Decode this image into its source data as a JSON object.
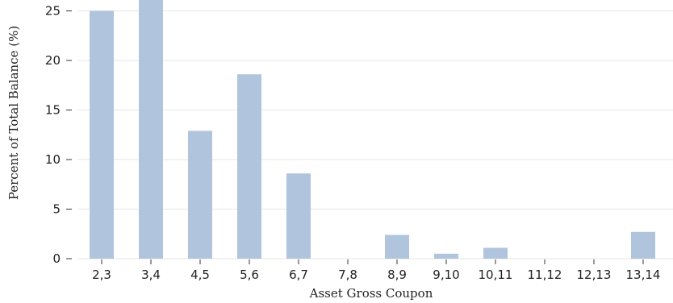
{
  "chart_data": {
    "type": "bar",
    "title": "",
    "xlabel": "Asset Gross Coupon",
    "ylabel": "Percent of Total Balance (%)",
    "categories": [
      "2,3",
      "3,4",
      "4,5",
      "5,6",
      "6,7",
      "7,8",
      "8,9",
      "9,10",
      "10,11",
      "11,12",
      "12,13",
      "13,14"
    ],
    "values": [
      25.0,
      26.5,
      12.9,
      18.6,
      8.6,
      0.0,
      2.4,
      0.5,
      1.1,
      0.0,
      0.0,
      2.7
    ],
    "ylim": [
      0,
      26.1
    ],
    "yticks": [
      0,
      5,
      10,
      15,
      20,
      25
    ],
    "grid": true,
    "legend": "none",
    "bar_color": "#b0c4de",
    "grid_color": "#e6e6e6"
  }
}
